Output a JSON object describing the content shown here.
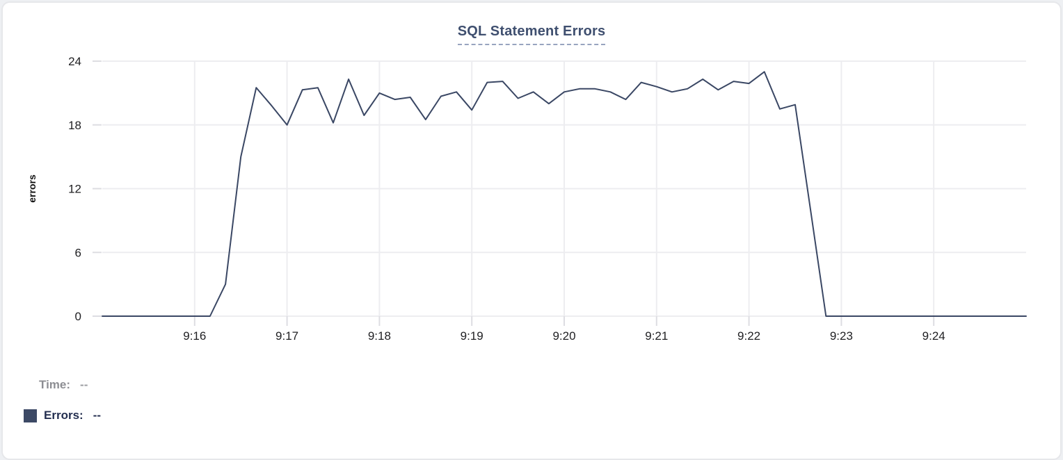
{
  "chart": {
    "title": "SQL Statement Errors",
    "y_axis_title": "errors"
  },
  "chart_data": {
    "type": "line",
    "title": "SQL Statement Errors",
    "xlabel": "",
    "ylabel": "errors",
    "series_name": "Errors",
    "x": [
      "9:15:00",
      "9:15:10",
      "9:15:20",
      "9:15:30",
      "9:15:40",
      "9:15:50",
      "9:16:00",
      "9:16:10",
      "9:16:20",
      "9:16:30",
      "9:16:40",
      "9:16:50",
      "9:17:00",
      "9:17:10",
      "9:17:20",
      "9:17:30",
      "9:17:40",
      "9:17:50",
      "9:18:00",
      "9:18:10",
      "9:18:20",
      "9:18:30",
      "9:18:40",
      "9:18:50",
      "9:19:00",
      "9:19:10",
      "9:19:20",
      "9:19:30",
      "9:19:40",
      "9:19:50",
      "9:20:00",
      "9:20:10",
      "9:20:20",
      "9:20:30",
      "9:20:40",
      "9:20:50",
      "9:21:00",
      "9:21:10",
      "9:21:20",
      "9:21:30",
      "9:21:40",
      "9:21:50",
      "9:22:00",
      "9:22:10",
      "9:22:20",
      "9:22:30",
      "9:22:40",
      "9:22:50",
      "9:23:00",
      "9:23:10",
      "9:23:20",
      "9:23:30",
      "9:23:40",
      "9:23:50",
      "9:24:00",
      "9:24:10",
      "9:24:20",
      "9:24:30",
      "9:24:40",
      "9:24:50",
      "9:25:00"
    ],
    "values": [
      0,
      0,
      0,
      0,
      0,
      0,
      0,
      0,
      3,
      15,
      21.5,
      19.8,
      18,
      21.3,
      21.5,
      18.2,
      22.3,
      18.9,
      21,
      20.4,
      20.6,
      18.5,
      20.7,
      21.1,
      19.4,
      22,
      22.1,
      20.5,
      21.1,
      20,
      21.1,
      21.4,
      21.4,
      21.1,
      20.4,
      22,
      21.6,
      21.1,
      21.4,
      22.3,
      21.3,
      22.1,
      21.9,
      23,
      19.5,
      19.9,
      10,
      0,
      0,
      0,
      0,
      0,
      0,
      0,
      0,
      0,
      0,
      0,
      0,
      0,
      0
    ],
    "ylim": [
      0,
      24
    ],
    "y_ticks": [
      0,
      6,
      12,
      18,
      24
    ],
    "x_tick_labels": [
      "9:16",
      "9:17",
      "9:18",
      "9:19",
      "9:20",
      "9:21",
      "9:22",
      "9:23",
      "9:24"
    ],
    "xlim": [
      "9:15:00",
      "9:25:00"
    ],
    "grid": true,
    "legend_position": "bottom-left"
  },
  "legend": {
    "time_label": "Time:",
    "time_value": "--",
    "errors_label": "Errors:",
    "errors_value": "--"
  },
  "colors": {
    "series_line": "#3a4764",
    "legend_swatch": "#3c4965",
    "title_text": "#3f4f6f",
    "title_underline": "#97a4bf",
    "gridline": "#ededf0",
    "tick_mark": "#dddde2",
    "axis_text": "#1f1f22",
    "time_label": "#8d8e93",
    "errors_label": "#242f50",
    "card_border": "#e6e7ea"
  }
}
